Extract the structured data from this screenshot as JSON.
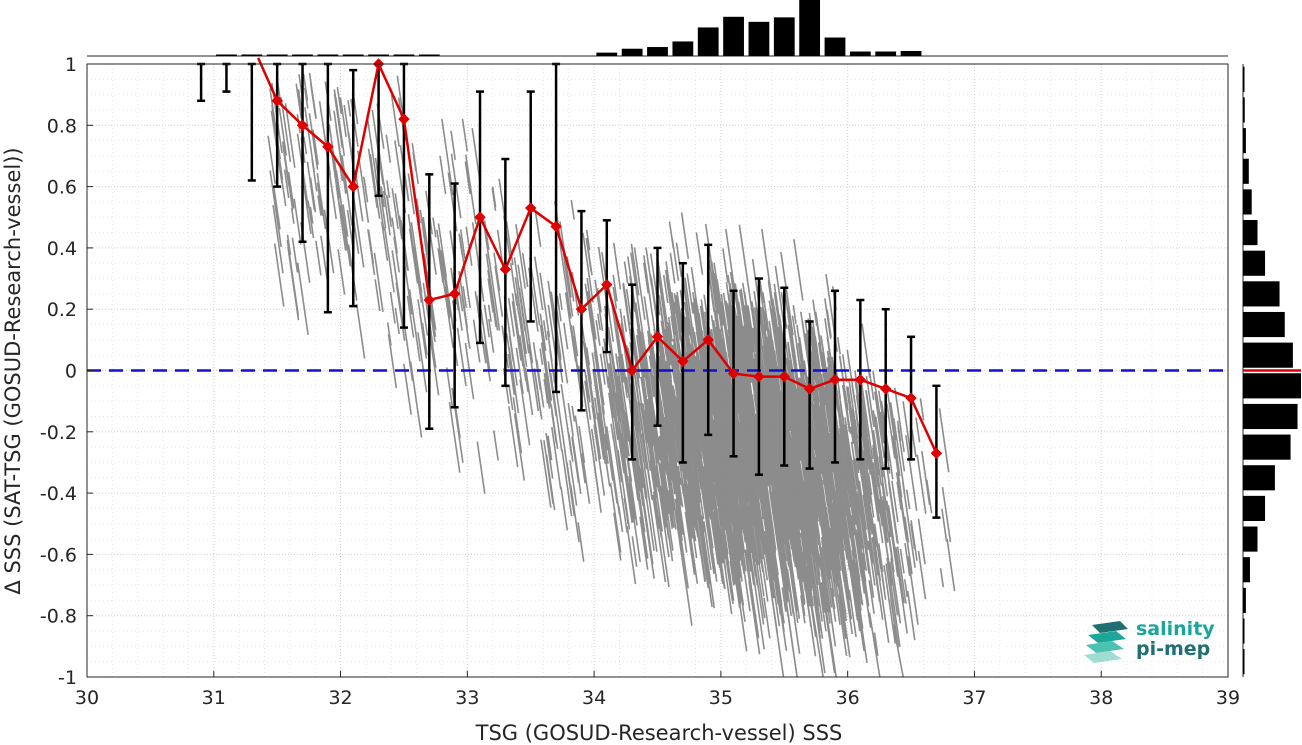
{
  "chart_data": {
    "type": "scatter",
    "xlabel": "TSG (GOSUD-Research-vessel) SSS",
    "ylabel": "Δ SSS (SAT-TSG (GOSUD-Research-vessel))",
    "xlim": [
      30,
      39
    ],
    "ylim": [
      -1,
      1
    ],
    "xticks": [
      "30",
      "31",
      "32",
      "33",
      "34",
      "35",
      "36",
      "37",
      "38",
      "39"
    ],
    "yticks": [
      "-1",
      "-0.8",
      "-0.6",
      "-0.4",
      "-0.2",
      "0",
      "0.2",
      "0.4",
      "0.6",
      "0.8",
      "1"
    ],
    "grid": true,
    "reference_line": {
      "y": 0,
      "style": "dashed",
      "color": "#1010d0"
    },
    "binned_mean": {
      "color": "#dd0000",
      "x": [
        31.5,
        31.7,
        31.9,
        32.1,
        32.3,
        32.5,
        32.7,
        32.9,
        33.1,
        33.3,
        33.5,
        33.7,
        33.9,
        34.1,
        34.3,
        34.5,
        34.7,
        34.9,
        35.1,
        35.3,
        35.5,
        35.7,
        35.9,
        36.1,
        36.3,
        36.5,
        36.7
      ],
      "y": [
        0.88,
        0.8,
        0.73,
        0.6,
        1.0,
        0.82,
        0.23,
        0.25,
        0.5,
        0.33,
        0.53,
        0.47,
        0.2,
        0.28,
        0.0,
        0.11,
        0.03,
        0.1,
        -0.01,
        -0.02,
        -0.02,
        -0.06,
        -0.03,
        -0.03,
        -0.06,
        -0.09,
        -0.27
      ],
      "lo": [
        0.6,
        0.42,
        0.19,
        0.21,
        0.57,
        0.14,
        -0.19,
        -0.12,
        0.09,
        -0.05,
        0.16,
        -0.07,
        -0.13,
        0.06,
        -0.29,
        -0.18,
        -0.3,
        -0.21,
        -0.28,
        -0.34,
        -0.31,
        -0.32,
        -0.3,
        -0.29,
        -0.32,
        -0.29,
        -0.48
      ],
      "hi": [
        1.02,
        1.02,
        1.02,
        0.98,
        1.02,
        1.02,
        0.64,
        0.61,
        0.91,
        0.69,
        0.91,
        1.0,
        0.52,
        0.49,
        0.28,
        0.4,
        0.35,
        0.41,
        0.26,
        0.3,
        0.27,
        0.16,
        0.26,
        0.23,
        0.2,
        0.11,
        -0.05
      ]
    },
    "extra_errorbars": [
      {
        "x": 30.9,
        "lo": 0.88,
        "hi": 1.02
      },
      {
        "x": 31.1,
        "lo": 0.91,
        "hi": 1.02
      },
      {
        "x": 31.3,
        "lo": 0.62,
        "hi": 1.02
      }
    ],
    "top_histogram": {
      "bin_centers": [
        31.1,
        31.3,
        31.5,
        31.7,
        31.9,
        32.1,
        32.3,
        32.5,
        32.7,
        34.1,
        34.3,
        34.5,
        34.7,
        34.9,
        35.1,
        35.3,
        35.5,
        35.7,
        35.9,
        36.1,
        36.3,
        36.5
      ],
      "counts": [
        0.01,
        0.01,
        0.01,
        0.01,
        0.01,
        0.01,
        0.02,
        0.01,
        0.01,
        0.06,
        0.13,
        0.16,
        0.26,
        0.51,
        0.7,
        0.61,
        0.69,
        1.0,
        0.33,
        0.08,
        0.08,
        0.09
      ]
    },
    "right_histogram": {
      "bin_centers": [
        0.95,
        0.85,
        0.75,
        0.65,
        0.55,
        0.45,
        0.35,
        0.25,
        0.15,
        0.05,
        -0.05,
        -0.15,
        -0.25,
        -0.35,
        -0.45,
        -0.55,
        -0.65,
        -0.75,
        -0.85,
        -0.95
      ],
      "counts": [
        0.02,
        0.03,
        0.05,
        0.1,
        0.15,
        0.25,
        0.38,
        0.63,
        0.72,
        0.86,
        1.0,
        0.94,
        0.82,
        0.55,
        0.38,
        0.25,
        0.12,
        0.05,
        0.02,
        0.01
      ],
      "mean_marker_y": 0,
      "mean_marker_color": "#dd0000"
    },
    "scatter_color": "#808080"
  },
  "logo": {
    "line1": "salinity",
    "line2": "pi-mep",
    "colors": [
      "#1aa79a",
      "#1f6f73",
      "#9fdcd2"
    ]
  }
}
